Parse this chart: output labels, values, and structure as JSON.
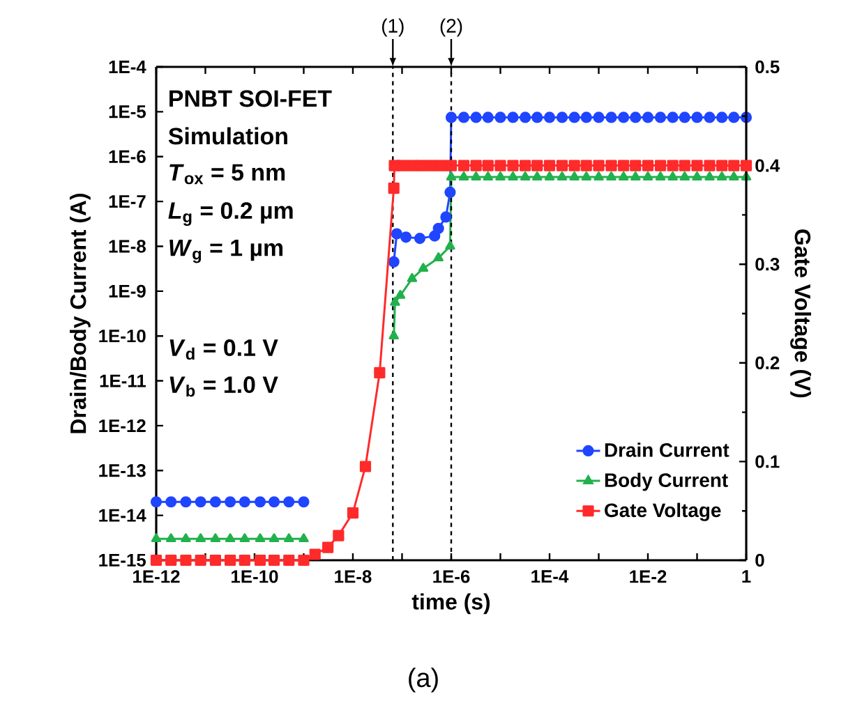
{
  "chart_data": {
    "type": "line",
    "xlabel": "time (s)",
    "ylabel": "Drain/Body Current (A)",
    "y2label": "Gate Voltage (V)",
    "log": "xy",
    "xlim": [
      1e-12,
      1
    ],
    "ylim": [
      1e-15,
      0.0001
    ],
    "y2lim": [
      0,
      0.5
    ],
    "xticks": [
      {
        "value": 1e-12,
        "label": "1E-12"
      },
      {
        "value": 1e-11,
        "label": null
      },
      {
        "value": 1e-10,
        "label": "1E-10"
      },
      {
        "value": 1e-09,
        "label": null
      },
      {
        "value": 1e-08,
        "label": "1E-8"
      },
      {
        "value": 1e-07,
        "label": null
      },
      {
        "value": 1e-06,
        "label": "1E-6"
      },
      {
        "value": 1e-05,
        "label": null
      },
      {
        "value": 0.0001,
        "label": "1E-4"
      },
      {
        "value": 0.001,
        "label": null
      },
      {
        "value": 0.01,
        "label": "1E-2"
      },
      {
        "value": 0.1,
        "label": null
      },
      1
    ],
    "yticks": [
      {
        "value": 1e-15,
        "label": "1E-15"
      },
      {
        "value": 1e-14,
        "label": "1E-14"
      },
      {
        "value": 1e-13,
        "label": "1E-13"
      },
      {
        "value": 1e-12,
        "label": "1E-12"
      },
      {
        "value": 1e-11,
        "label": "1E-11"
      },
      {
        "value": 1e-10,
        "label": "1E-10"
      },
      {
        "value": 1e-09,
        "label": "1E-9"
      },
      {
        "value": 1e-08,
        "label": "1E-8"
      },
      {
        "value": 1e-07,
        "label": "1E-7"
      },
      {
        "value": 1e-06,
        "label": "1E-6"
      },
      {
        "value": 1e-05,
        "label": "1E-5"
      },
      {
        "value": 0.0001,
        "label": "1E-4"
      }
    ],
    "y2ticks": [
      0,
      0.1,
      0.2,
      0.3,
      0.4,
      0.5
    ],
    "legend": "bottom right",
    "grid": false,
    "ref_lines": [
      {
        "axis": "x",
        "value": 6.5e-08,
        "color": "#000000",
        "line_style": "dashed"
      },
      {
        "axis": "x",
        "value": 1e-06,
        "color": "#000000",
        "line_style": "dashed"
      }
    ],
    "annotations": [
      "PNBT SOI-FET",
      "Simulation",
      "*T*$_{ox}$ = 5 nm",
      "*L*$_{g}$ = 0.2 µm",
      "*W*$_{g}$ = 1 µm",
      "*V*$_{d}$ = 0.1 V",
      "*V*$_{b}$ = 1.0 V",
      "(a)",
      {
        "text": "(1)",
        "x": 6.5e-08,
        "y": 0.0001
      },
      {
        "text": "(2)",
        "x": 1e-06,
        "y": 0.0001
      }
    ],
    "series": [
      {
        "name": "Drain Current",
        "color": "#1f45ff",
        "marker": "circle",
        "x": [
          1e-12,
          2e-12,
          4e-12,
          8e-12,
          1.6e-11,
          3.2e-11,
          6.3e-11,
          1.3e-10,
          2.5e-10,
          5e-10,
          1e-09,
          3e-09,
          6.8e-08,
          7.8e-08,
          1.2e-07,
          2.3e-07,
          4.6e-07,
          5.5e-07,
          7.8e-07,
          9.5e-07,
          1e-06,
          1.8e-06,
          3.2e-06,
          5.6e-06,
          1e-05,
          1.8e-05,
          3.2e-05,
          5.6e-05,
          0.0001,
          0.00018,
          0.00032,
          0.00056,
          0.001,
          0.0018,
          0.0032,
          0.0056,
          0.01,
          0.018,
          0.032,
          0.056,
          0.1,
          0.18,
          0.32,
          0.56,
          1
        ],
        "values": [
          2e-14,
          2e-14,
          2e-14,
          2e-14,
          2e-14,
          2e-14,
          2e-14,
          2e-14,
          2e-14,
          2e-14,
          2e-14,
          null,
          4.5e-09,
          1.9e-08,
          1.6e-08,
          1.5e-08,
          1.7e-08,
          2.5e-08,
          4.5e-08,
          1.6e-07,
          7.5e-06,
          7.5e-06,
          7.5e-06,
          7.5e-06,
          7.5e-06,
          7.5e-06,
          7.5e-06,
          7.5e-06,
          7.5e-06,
          7.5e-06,
          7.5e-06,
          7.5e-06,
          7.5e-06,
          7.5e-06,
          7.5e-06,
          7.5e-06,
          7.5e-06,
          7.5e-06,
          7.5e-06,
          7.5e-06,
          7.5e-06,
          7.5e-06,
          7.5e-06,
          7.5e-06,
          7.5e-06
        ]
      },
      {
        "name": "Body Current",
        "color": "#22b14c",
        "marker": "triangle",
        "x": [
          1e-12,
          2e-12,
          4e-12,
          8e-12,
          1.6e-11,
          3.2e-11,
          6.3e-11,
          1.3e-10,
          2.5e-10,
          5e-10,
          1e-09,
          3e-09,
          6.8e-08,
          7.2e-08,
          9.2e-08,
          1.6e-07,
          2.7e-07,
          5.5e-07,
          9.5e-07,
          1e-06,
          1.8e-06,
          3.2e-06,
          5.6e-06,
          1e-05,
          1.8e-05,
          3.2e-05,
          5.6e-05,
          0.0001,
          0.00018,
          0.00032,
          0.00056,
          0.001,
          0.0018,
          0.0032,
          0.0056,
          0.01,
          0.018,
          0.032,
          0.056,
          0.1,
          0.18,
          0.32,
          0.56,
          1
        ],
        "values": [
          3e-15,
          3e-15,
          3e-15,
          3e-15,
          3e-15,
          3e-15,
          3e-15,
          3e-15,
          3e-15,
          3e-15,
          3e-15,
          null,
          1e-10,
          5.6e-10,
          8e-10,
          1.9e-09,
          3.2e-09,
          5.5e-09,
          1e-08,
          3.5e-07,
          3.5e-07,
          3.5e-07,
          3.5e-07,
          3.5e-07,
          3.5e-07,
          3.5e-07,
          3.5e-07,
          3.5e-07,
          3.5e-07,
          3.5e-07,
          3.5e-07,
          3.5e-07,
          3.5e-07,
          3.5e-07,
          3.5e-07,
          3.5e-07,
          3.5e-07,
          3.5e-07,
          3.5e-07,
          3.5e-07,
          3.5e-07,
          3.5e-07,
          3.5e-07,
          3.5e-07
        ]
      },
      {
        "name": "Gate Voltage",
        "color": "#ff2a2a",
        "marker": "square",
        "axis": "y2",
        "x": [
          1e-12,
          2e-12,
          4e-12,
          8e-12,
          1.6e-11,
          3.2e-11,
          6.3e-11,
          1.3e-10,
          2.5e-10,
          5e-10,
          1e-09,
          1.7e-09,
          3.1e-09,
          5.1e-09,
          1e-08,
          1.8e-08,
          3.5e-08,
          6.8e-08,
          7e-08,
          1e-07,
          1.6e-07,
          2.5e-07,
          4e-07,
          6.3e-07,
          1e-06,
          1.8e-06,
          3.2e-06,
          5.6e-06,
          1e-05,
          1.8e-05,
          3.2e-05,
          5.6e-05,
          0.0001,
          0.00018,
          0.00032,
          0.00056,
          0.001,
          0.0018,
          0.0032,
          0.0056,
          0.01,
          0.018,
          0.032,
          0.056,
          0.1,
          0.18,
          0.32,
          0.56,
          1
        ],
        "values": [
          0,
          0,
          0,
          0,
          0,
          0,
          0,
          0,
          0,
          0,
          0,
          0.006,
          0.013,
          0.025,
          0.048,
          0.095,
          0.19,
          0.377,
          0.4,
          0.4,
          0.4,
          0.4,
          0.4,
          0.4,
          0.4,
          0.4,
          0.4,
          0.4,
          0.4,
          0.4,
          0.4,
          0.4,
          0.4,
          0.4,
          0.4,
          0.4,
          0.4,
          0.4,
          0.4,
          0.4,
          0.4,
          0.4,
          0.4,
          0.4,
          0.4,
          0.4,
          0.4,
          0.4,
          0.4
        ]
      }
    ]
  }
}
